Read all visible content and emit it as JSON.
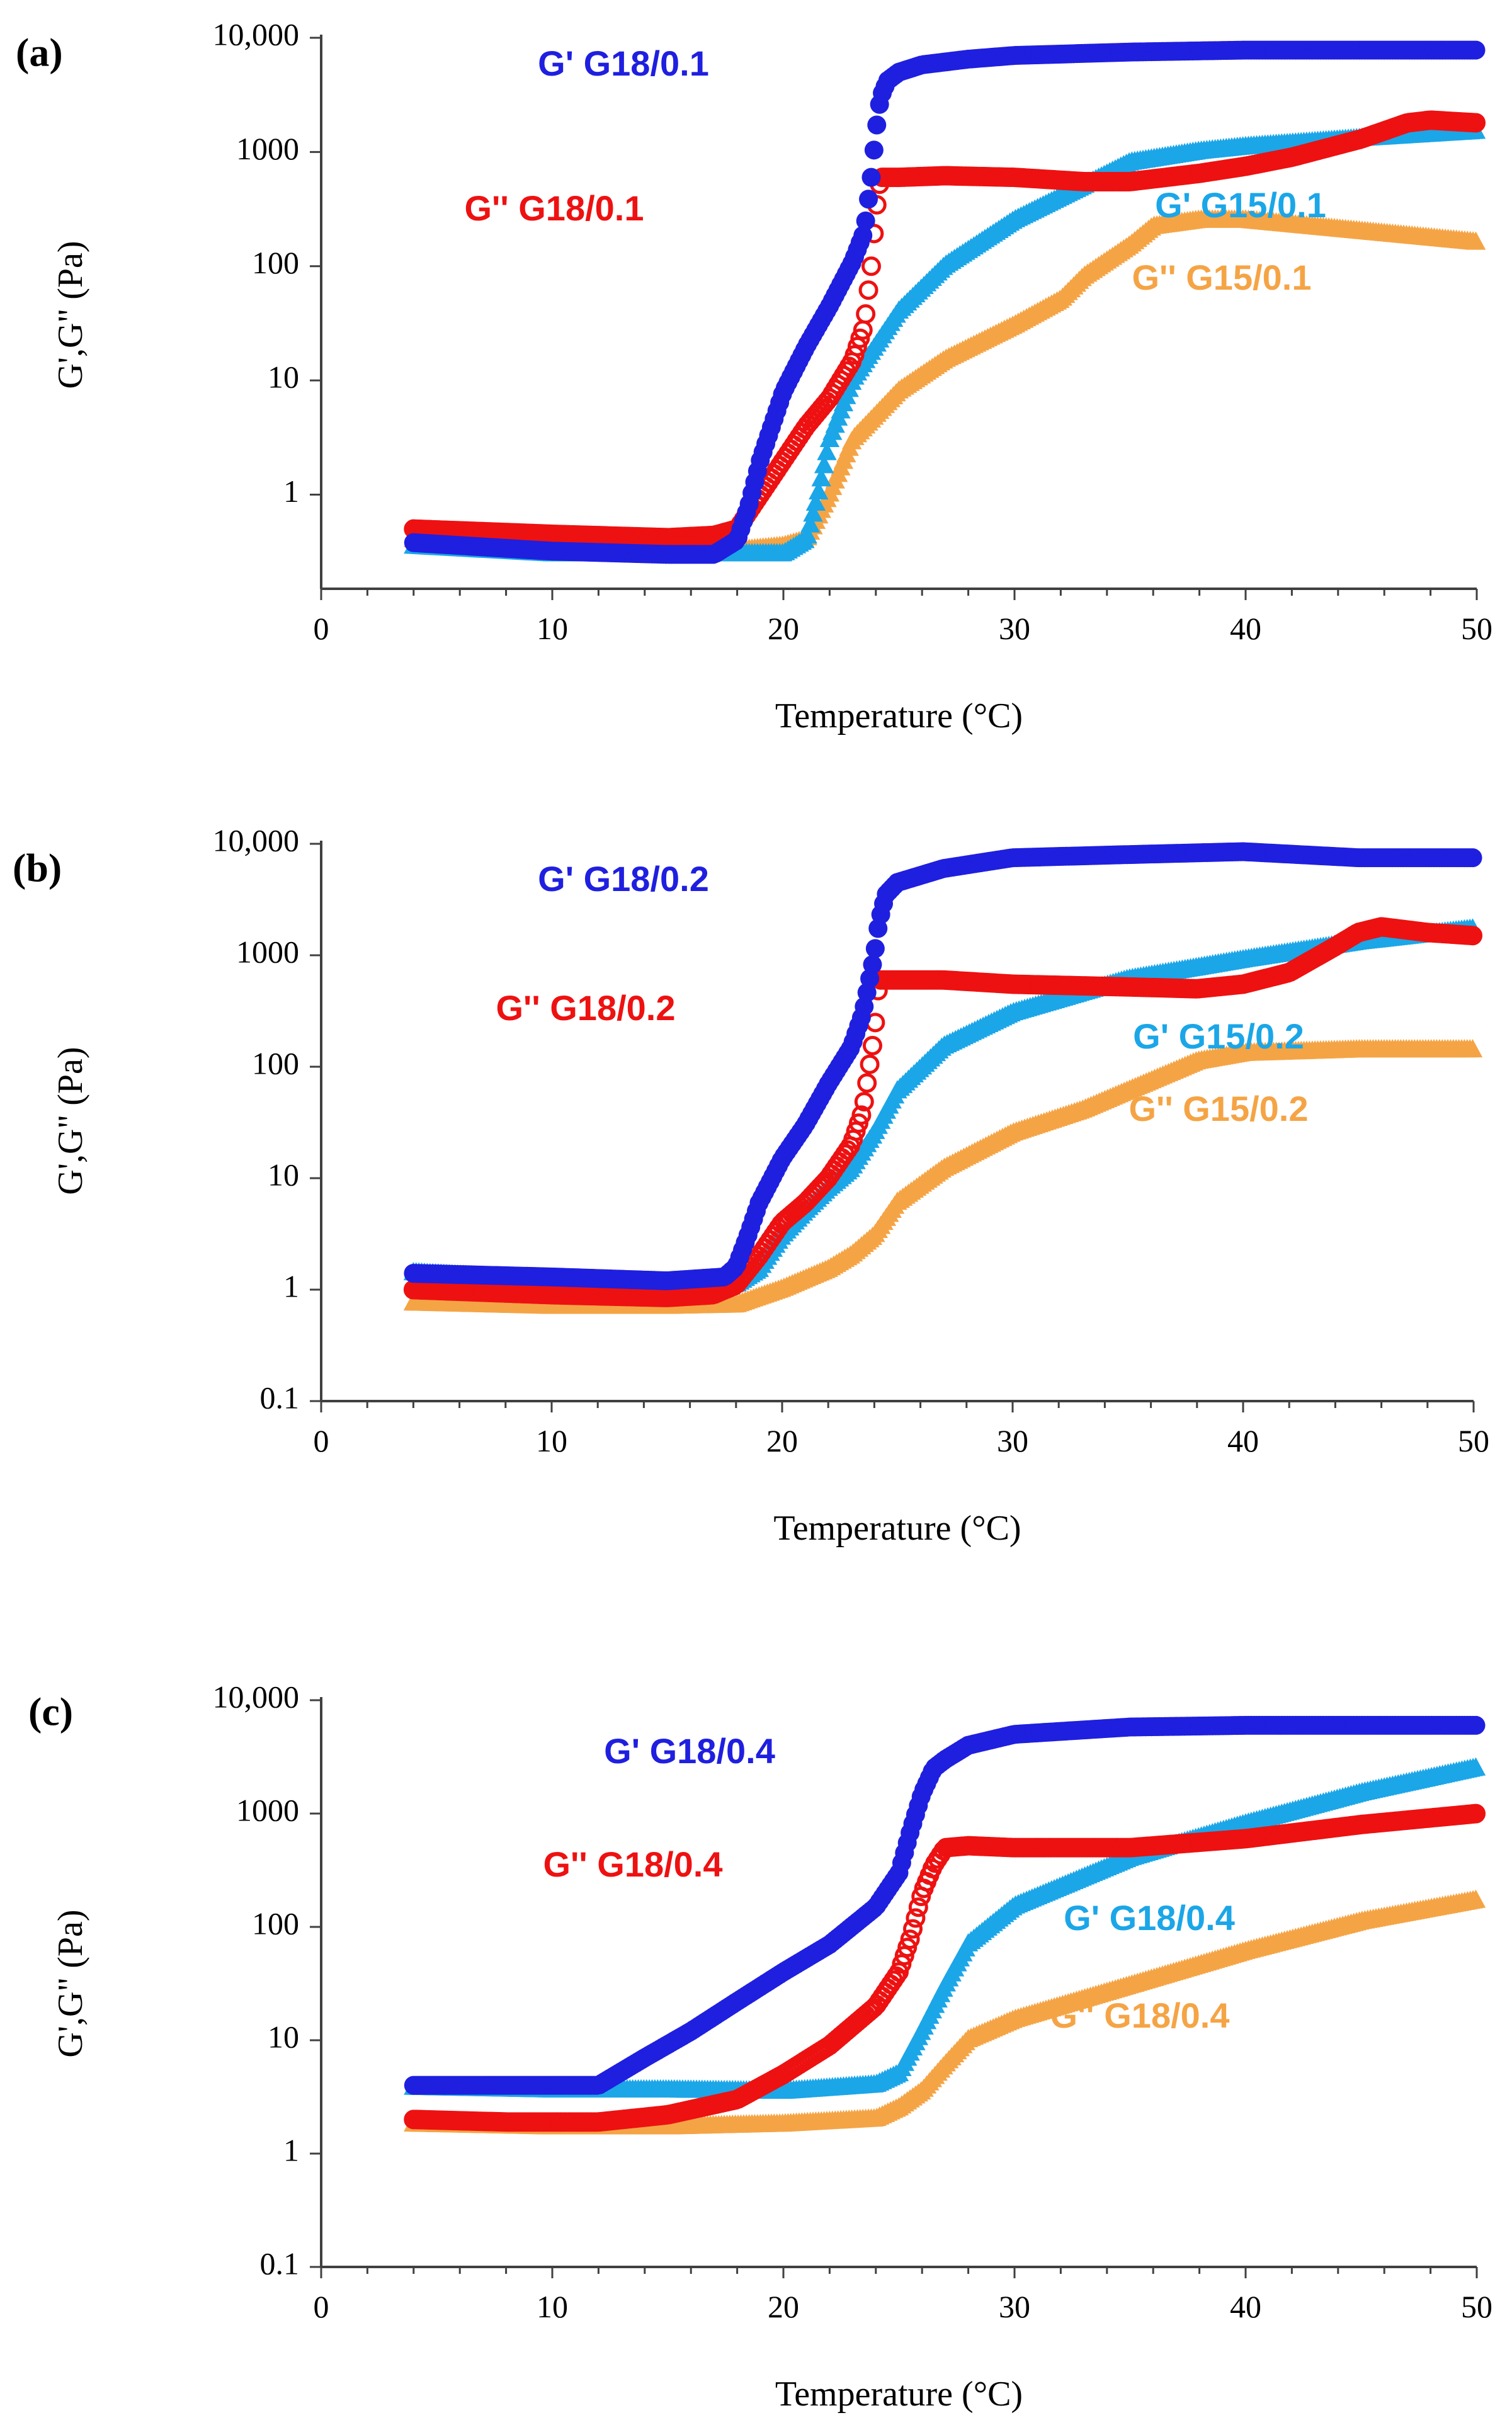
{
  "chart_data": [
    {
      "type": "scatter",
      "panel_label": "(a)",
      "xlabel": "Temperature (°C)",
      "ylabel": "G',G\" (Pa)",
      "x_ticks": [
        "0",
        "10",
        "20",
        "30",
        "40",
        "50"
      ],
      "y_ticks": [
        "1",
        "10",
        "100",
        "1000",
        "10,000"
      ],
      "xlim": [
        0,
        50
      ],
      "ylim": [
        0.15,
        10000
      ],
      "y_scale": "log",
      "grid": false,
      "series": [
        {
          "name": "G' G18/0.1",
          "color": "#1f1fe0",
          "marker": "filled-circle",
          "x": [
            4,
            10,
            15,
            17,
            18,
            18.5,
            19,
            20,
            21,
            22,
            23,
            23.5,
            23.8,
            24,
            24.2,
            24.5,
            25,
            26,
            28,
            30,
            35,
            40,
            45,
            50
          ],
          "y": [
            0.38,
            0.32,
            0.3,
            0.3,
            0.4,
            0.8,
            2,
            8,
            20,
            45,
            110,
            200,
            600,
            1500,
            3000,
            4200,
            5000,
            5800,
            6500,
            7000,
            7500,
            7800,
            7800,
            7800
          ]
        },
        {
          "name": "G'' G18/0.1",
          "color": "#ee1111",
          "marker": "circle",
          "x": [
            4,
            10,
            15,
            17,
            18,
            19,
            20,
            21,
            22,
            23,
            23.5,
            23.8,
            24,
            24.2,
            25,
            27,
            30,
            33,
            35,
            38,
            40,
            42,
            45,
            47,
            48,
            50
          ],
          "y": [
            0.5,
            0.45,
            0.42,
            0.44,
            0.5,
            1,
            2,
            4,
            7,
            15,
            30,
            100,
            300,
            600,
            600,
            620,
            600,
            550,
            550,
            650,
            750,
            900,
            1300,
            1800,
            1900,
            1800
          ]
        },
        {
          "name": "G' G15/0.1",
          "color": "#1ba6e8",
          "marker": "triangle",
          "x": [
            4,
            10,
            15,
            18,
            20,
            21,
            21.5,
            22,
            23,
            24,
            25,
            27,
            30,
            33,
            35,
            38,
            40,
            45,
            50
          ],
          "y": [
            0.35,
            0.3,
            0.3,
            0.3,
            0.3,
            0.4,
            1,
            3,
            10,
            20,
            40,
            100,
            250,
            500,
            800,
            1000,
            1100,
            1300,
            1500
          ]
        },
        {
          "name": "G'' G15/0.1",
          "color": "#f5a445",
          "marker": "triangle",
          "x": [
            4,
            10,
            15,
            18,
            20,
            21,
            22,
            23,
            25,
            27,
            30,
            32,
            33,
            35,
            36,
            38,
            40,
            45,
            50
          ],
          "y": [
            0.4,
            0.35,
            0.32,
            0.32,
            0.35,
            0.4,
            1,
            3,
            8,
            15,
            30,
            50,
            80,
            150,
            220,
            250,
            250,
            200,
            160
          ]
        }
      ]
    },
    {
      "type": "scatter",
      "panel_label": "(b)",
      "xlabel": "Temperature (°C)",
      "ylabel": "G',G\" (Pa)",
      "x_ticks": [
        "0",
        "10",
        "20",
        "30",
        "40",
        "50"
      ],
      "y_ticks": [
        "0.1",
        "1",
        "10",
        "100",
        "1000",
        "10,000"
      ],
      "xlim": [
        0,
        50
      ],
      "ylim": [
        0.1,
        10000
      ],
      "y_scale": "log",
      "grid": false,
      "series": [
        {
          "name": "G' G18/0.2",
          "color": "#1f1fe0",
          "marker": "filled-circle",
          "x": [
            4,
            10,
            15,
            17.5,
            18,
            18.5,
            19,
            20,
            21,
            22,
            23,
            23.5,
            24,
            24.2,
            24.5,
            25,
            27,
            30,
            35,
            40,
            45,
            50
          ],
          "y": [
            1.4,
            1.3,
            1.2,
            1.3,
            1.6,
            3,
            6,
            15,
            30,
            70,
            150,
            300,
            1000,
            2000,
            3500,
            4500,
            6000,
            7500,
            8000,
            8500,
            7500,
            7500
          ]
        },
        {
          "name": "G'' G18/0.2",
          "color": "#ee1111",
          "marker": "circle",
          "x": [
            4,
            10,
            15,
            17,
            18,
            19,
            20,
            21,
            22,
            23,
            23.5,
            24,
            24.2,
            25,
            27,
            30,
            35,
            38,
            40,
            42,
            44,
            45,
            46,
            48,
            50
          ],
          "y": [
            1,
            0.9,
            0.85,
            0.9,
            1.1,
            2,
            4,
            6,
            10,
            20,
            40,
            200,
            600,
            600,
            600,
            550,
            520,
            500,
            550,
            700,
            1200,
            1600,
            1800,
            1600,
            1500
          ]
        },
        {
          "name": "G' G15/0.2",
          "color": "#1ba6e8",
          "marker": "triangle",
          "x": [
            4,
            10,
            15,
            18,
            19,
            20,
            21,
            22,
            23,
            24,
            25,
            27,
            30,
            35,
            40,
            45,
            50
          ],
          "y": [
            1.4,
            1.2,
            1.1,
            1.1,
            1.5,
            3,
            5,
            8,
            12,
            25,
            60,
            150,
            300,
            600,
            900,
            1300,
            1700
          ]
        },
        {
          "name": "G'' G15/0.2",
          "color": "#f5a445",
          "marker": "triangle",
          "x": [
            4,
            10,
            15,
            18,
            20,
            22,
            23,
            24,
            25,
            27,
            30,
            33,
            35,
            38,
            40,
            45,
            50
          ],
          "y": [
            0.75,
            0.7,
            0.7,
            0.72,
            1,
            1.5,
            2,
            3,
            6,
            12,
            25,
            40,
            60,
            110,
            130,
            140,
            140
          ]
        }
      ]
    },
    {
      "type": "scatter",
      "panel_label": "(c)",
      "xlabel": "Temperature (°C)",
      "ylabel": "G',G\" (Pa)",
      "x_ticks": [
        "0",
        "10",
        "20",
        "30",
        "40",
        "50"
      ],
      "y_ticks": [
        "0.1",
        "1",
        "10",
        "100",
        "1000",
        "10,000"
      ],
      "xlim": [
        0,
        50
      ],
      "ylim": [
        0.1,
        10000
      ],
      "y_scale": "log",
      "grid": false,
      "series": [
        {
          "name": "G' G18/0.4",
          "color": "#1f1fe0",
          "marker": "filled-circle",
          "x": [
            4,
            8,
            12,
            14,
            16,
            18,
            20,
            22,
            24,
            25,
            25.5,
            26,
            26.5,
            27,
            28,
            30,
            35,
            40,
            45,
            50
          ],
          "y": [
            4,
            4,
            4,
            7,
            12,
            22,
            40,
            70,
            150,
            300,
            700,
            1500,
            2500,
            3000,
            4000,
            5000,
            5800,
            6000,
            6000,
            6000
          ]
        },
        {
          "name": "G'' G18/0.4",
          "color": "#ee1111",
          "marker": "circle",
          "x": [
            4,
            8,
            12,
            15,
            18,
            20,
            22,
            24,
            25,
            25.5,
            26,
            26.5,
            27,
            28,
            30,
            35,
            40,
            45,
            50
          ],
          "y": [
            2,
            1.9,
            1.9,
            2.2,
            3,
            5,
            9,
            20,
            40,
            80,
            200,
            350,
            500,
            520,
            500,
            500,
            600,
            800,
            1000
          ]
        },
        {
          "name": "G' G18/0.4",
          "color": "#1ba6e8",
          "marker": "triangle",
          "x": [
            4,
            10,
            15,
            20,
            24,
            25,
            26,
            27,
            28,
            30,
            35,
            40,
            45,
            50
          ],
          "y": [
            3.8,
            3.6,
            3.6,
            3.5,
            4,
            5,
            12,
            30,
            70,
            150,
            400,
            800,
            1500,
            2500
          ]
        },
        {
          "name": "G'' G18/0.4",
          "color": "#f5a445",
          "marker": "triangle",
          "x": [
            4,
            10,
            15,
            20,
            24,
            25,
            26,
            27,
            28,
            30,
            35,
            40,
            45,
            50
          ],
          "y": [
            1.8,
            1.7,
            1.7,
            1.8,
            2,
            2.5,
            3.5,
            6,
            10,
            15,
            30,
            60,
            110,
            170
          ]
        }
      ]
    }
  ]
}
